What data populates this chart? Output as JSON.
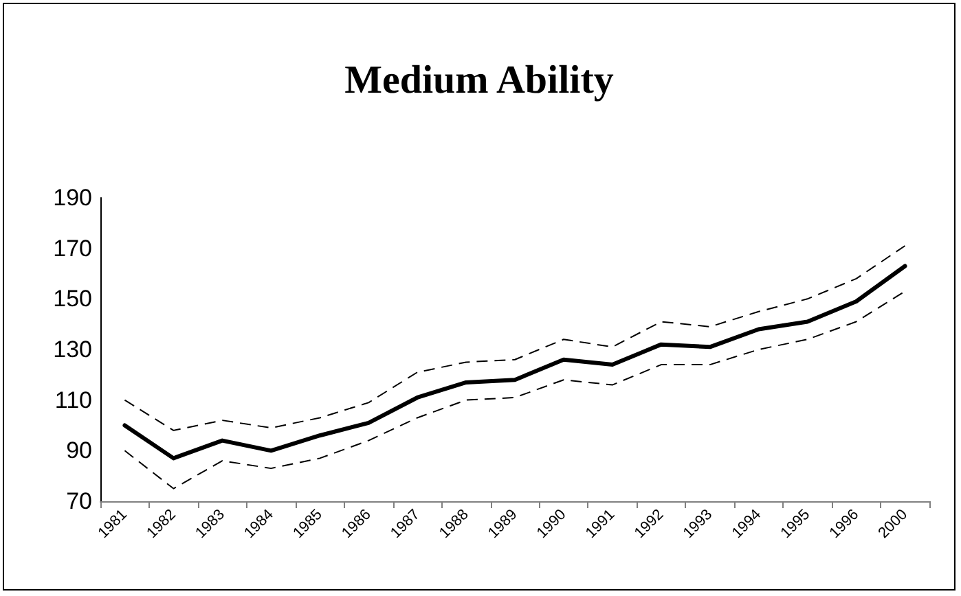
{
  "chart_data": {
    "type": "line",
    "title": "Medium Ability",
    "categories": [
      "1981",
      "1982",
      "1983",
      "1984",
      "1985",
      "1986",
      "1987",
      "1988",
      "1989",
      "1990",
      "1991",
      "1992",
      "1993",
      "1994",
      "1995",
      "1996",
      "2000"
    ],
    "series": [
      {
        "color": "#000000",
        "line_style": "dashed",
        "values": [
          110,
          98,
          102,
          99,
          103,
          109,
          121,
          125,
          126,
          134,
          131,
          141,
          139,
          145,
          150,
          158,
          171
        ]
      },
      {
        "color": "#000000",
        "line_style": "solid",
        "values": [
          100,
          87,
          94,
          90,
          96,
          101,
          111,
          117,
          118,
          126,
          124,
          132,
          131,
          138,
          141,
          149,
          163
        ]
      },
      {
        "color": "#000000",
        "line_style": "dashed",
        "values": [
          90,
          75,
          86,
          83,
          87,
          94,
          103,
          110,
          111,
          118,
          116,
          124,
          124,
          130,
          134,
          141,
          153
        ]
      }
    ],
    "ylim": [
      70,
      190
    ],
    "yticks": [
      70,
      90,
      110,
      130,
      150,
      170,
      190
    ],
    "grid": false,
    "marker": "none"
  }
}
